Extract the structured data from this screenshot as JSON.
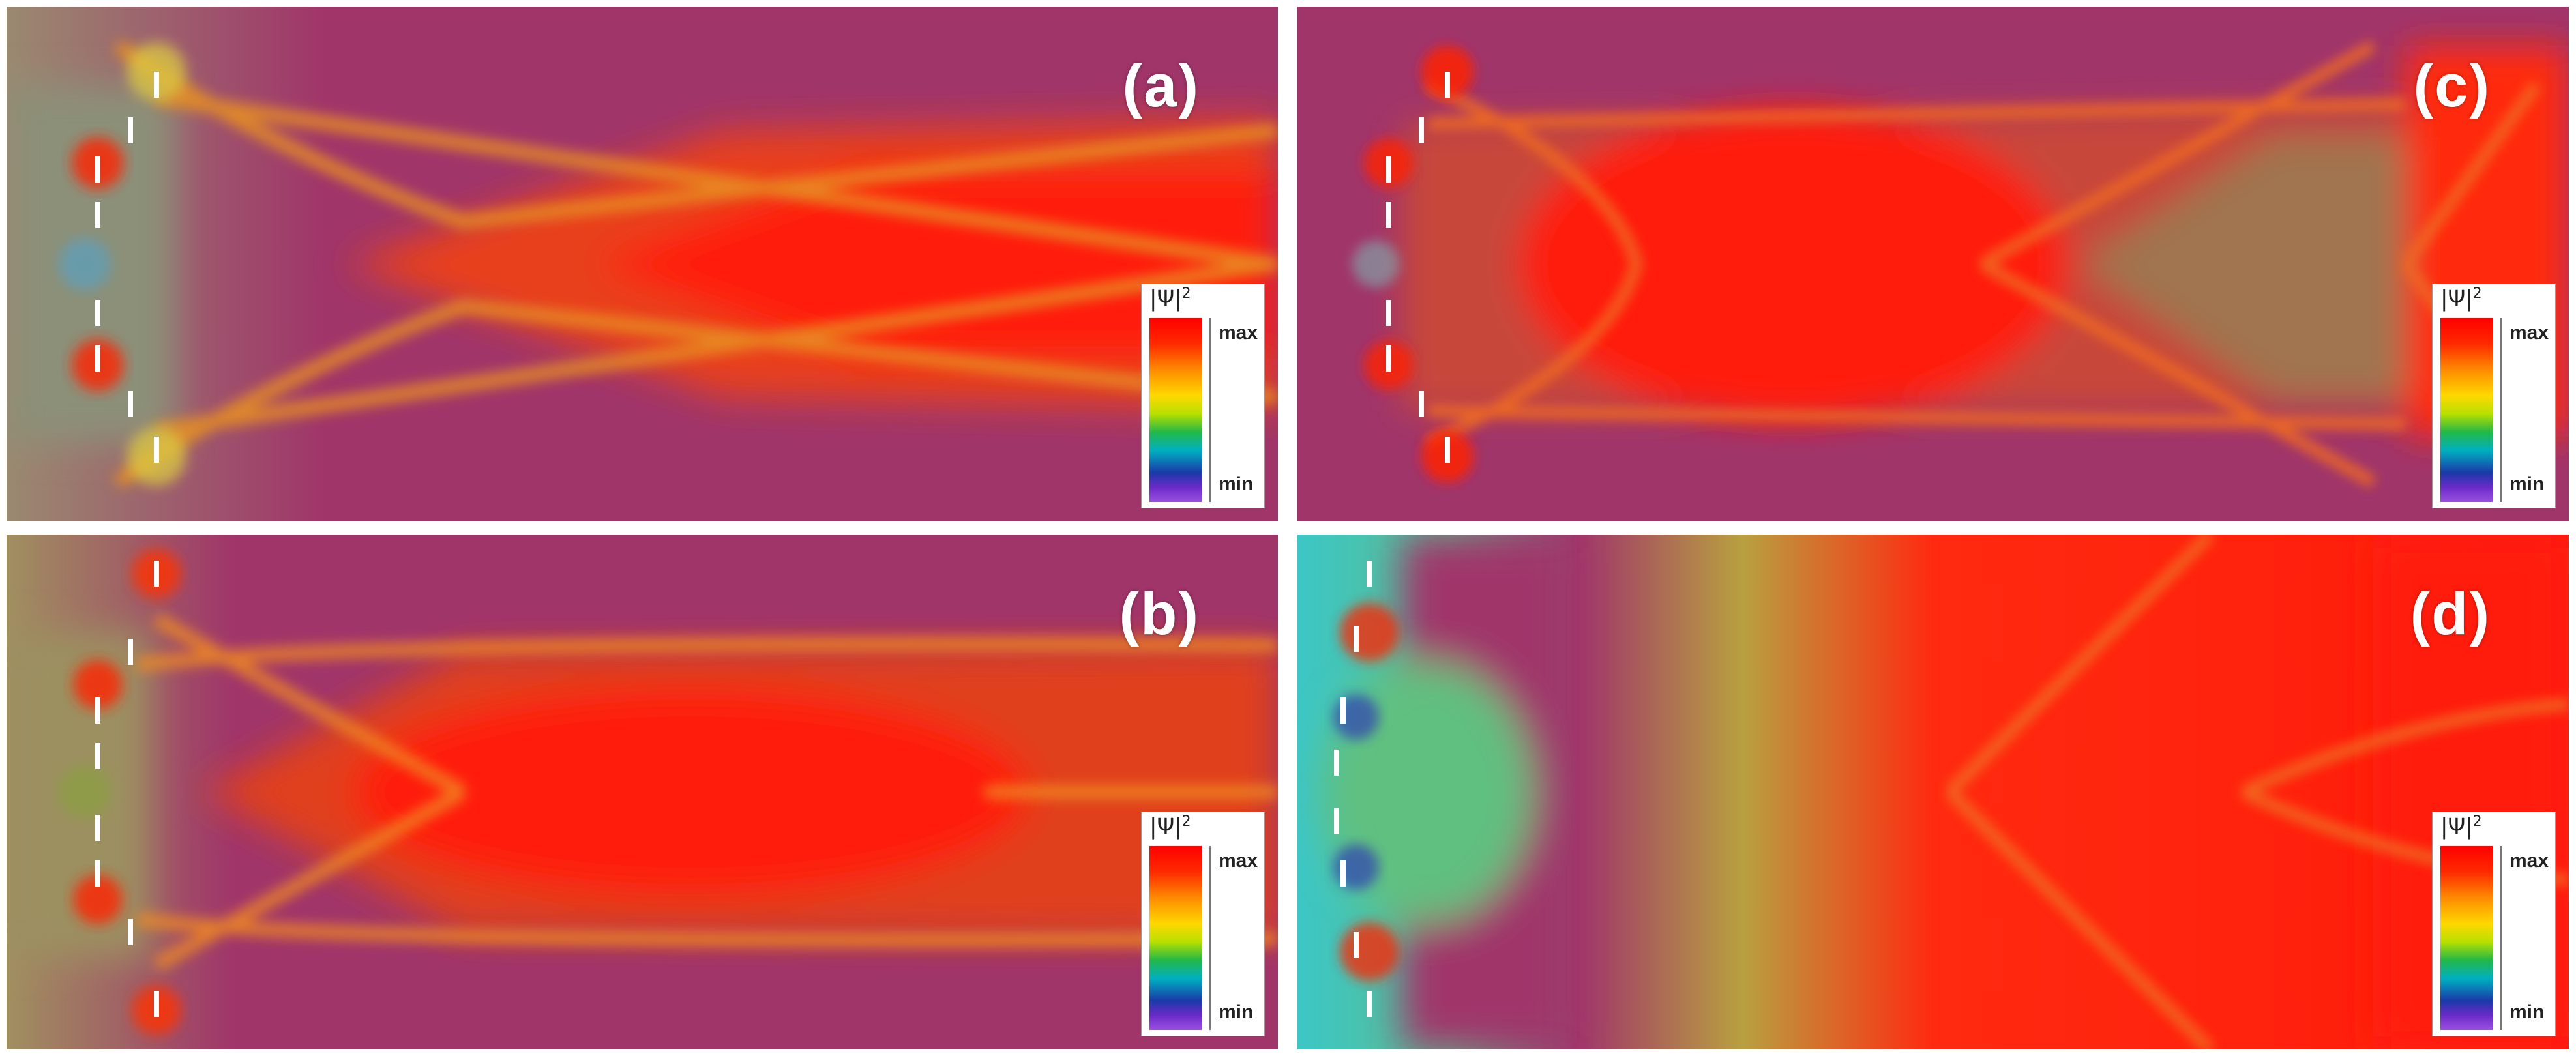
{
  "panels": [
    {
      "id": "a",
      "label": "(a)",
      "colorbar": {
        "title": "|Ψ|",
        "exponent": "2",
        "max_label": "max",
        "min_label": "min"
      }
    },
    {
      "id": "b",
      "label": "(b)",
      "colorbar": {
        "title": "|Ψ|",
        "exponent": "2",
        "max_label": "max",
        "min_label": "min"
      }
    },
    {
      "id": "c",
      "label": "(c)",
      "colorbar": {
        "title": "|Ψ|",
        "exponent": "2",
        "max_label": "max",
        "min_label": "min"
      }
    },
    {
      "id": "d",
      "label": "(d)",
      "colorbar": {
        "title": "|Ψ|",
        "exponent": "2",
        "max_label": "max",
        "min_label": "min"
      }
    }
  ],
  "colors": {
    "background": "#a0356a",
    "peak": "#ff1a0a",
    "orange": "#f07a1a",
    "olive": "#9a8a40",
    "cyan": "#3cc6c6"
  }
}
